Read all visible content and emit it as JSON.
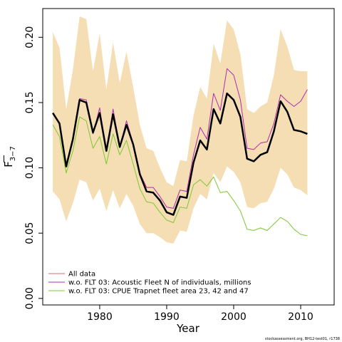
{
  "chart_data": {
    "type": "line",
    "xlabel": "Year",
    "ylabel": "F",
    "ylabel_subscript": "3−7",
    "xlim": [
      1971.5,
      2015.0
    ],
    "ylim": [
      -0.005,
      0.222
    ],
    "xticks": [
      1980,
      1990,
      2000,
      2010
    ],
    "yticks": [
      0.0,
      0.05,
      0.1,
      0.15,
      0.2
    ],
    "ytick_labels": [
      "0.00",
      "0.05",
      "0.10",
      "0.15",
      "0.20"
    ],
    "legend_position": "bottom-left",
    "x": [
      1973,
      1974,
      1975,
      1976,
      1977,
      1978,
      1979,
      1980,
      1981,
      1982,
      1983,
      1984,
      1985,
      1986,
      1987,
      1988,
      1989,
      1990,
      1991,
      1992,
      1993,
      1994,
      1995,
      1996,
      1997,
      1998,
      1999,
      2000,
      2001,
      2002,
      2003,
      2004,
      2005,
      2006,
      2007,
      2008,
      2009,
      2010,
      2011
    ],
    "band": {
      "color": "#f5deb3",
      "upper": [
        0.204,
        0.192,
        0.145,
        0.175,
        0.216,
        0.214,
        0.174,
        0.203,
        0.16,
        0.196,
        0.165,
        0.189,
        0.162,
        0.133,
        0.115,
        0.113,
        0.1,
        0.089,
        0.086,
        0.106,
        0.105,
        0.14,
        0.162,
        0.153,
        0.195,
        0.18,
        0.213,
        0.206,
        0.187,
        0.145,
        0.142,
        0.147,
        0.15,
        0.171,
        0.206,
        0.193,
        0.175,
        0.174,
        0.174
      ],
      "lower": [
        0.082,
        0.076,
        0.059,
        0.073,
        0.091,
        0.089,
        0.075,
        0.084,
        0.067,
        0.083,
        0.069,
        0.08,
        0.071,
        0.057,
        0.05,
        0.05,
        0.047,
        0.043,
        0.042,
        0.052,
        0.051,
        0.069,
        0.08,
        0.076,
        0.096,
        0.089,
        0.101,
        0.097,
        0.089,
        0.07,
        0.069,
        0.073,
        0.074,
        0.084,
        0.1,
        0.095,
        0.085,
        0.083,
        0.079
      ]
    },
    "series": [
      {
        "name": "All data",
        "color": "#000000",
        "width": 2.5,
        "values": [
          0.142,
          0.134,
          0.101,
          0.122,
          0.152,
          0.15,
          0.127,
          0.142,
          0.113,
          0.141,
          0.116,
          0.133,
          0.118,
          0.095,
          0.082,
          0.081,
          0.075,
          0.066,
          0.064,
          0.078,
          0.077,
          0.104,
          0.121,
          0.114,
          0.145,
          0.134,
          0.157,
          0.152,
          0.139,
          0.107,
          0.105,
          0.11,
          0.112,
          0.128,
          0.151,
          0.143,
          0.129,
          0.128,
          0.126
        ]
      },
      {
        "name": "w.o. FLT 03: Acoustic Fleet  N of individuals, millions",
        "color": "#b02bb0",
        "width": 1,
        "values": [
          0.142,
          0.134,
          0.103,
          0.122,
          0.153,
          0.152,
          0.126,
          0.146,
          0.113,
          0.145,
          0.116,
          0.136,
          0.119,
          0.096,
          0.085,
          0.085,
          0.078,
          0.07,
          0.069,
          0.083,
          0.082,
          0.11,
          0.131,
          0.122,
          0.157,
          0.144,
          0.176,
          0.171,
          0.152,
          0.115,
          0.114,
          0.119,
          0.12,
          0.134,
          0.156,
          0.151,
          0.147,
          0.151,
          0.16
        ]
      },
      {
        "name": "w.o. FLT 03: CPUE Trapnet fleet area 23, 42 and 47",
        "color": "#7dc832",
        "width": 1,
        "values": [
          0.133,
          0.124,
          0.096,
          0.113,
          0.139,
          0.136,
          0.115,
          0.124,
          0.103,
          0.126,
          0.11,
          0.121,
          0.103,
          0.084,
          0.074,
          0.073,
          0.066,
          0.06,
          0.058,
          0.07,
          0.069,
          0.087,
          0.091,
          0.086,
          0.093,
          0.081,
          0.082,
          0.075,
          0.067,
          0.053,
          0.052,
          0.054,
          0.052,
          0.057,
          0.062,
          0.059,
          0.053,
          0.049,
          0.048
        ]
      }
    ]
  },
  "legend": [
    {
      "label": "All data",
      "color": "#e06a6a"
    },
    {
      "label": "w.o. FLT 03: Acoustic Fleet  N of individuals, millions",
      "color": "#b02bb0"
    },
    {
      "label": "w.o. FLT 03: CPUE Trapnet fleet area 23, 42 and 47",
      "color": "#7dc832"
    }
  ],
  "footer": "stockassessment.org, BH12-test01, r1738"
}
